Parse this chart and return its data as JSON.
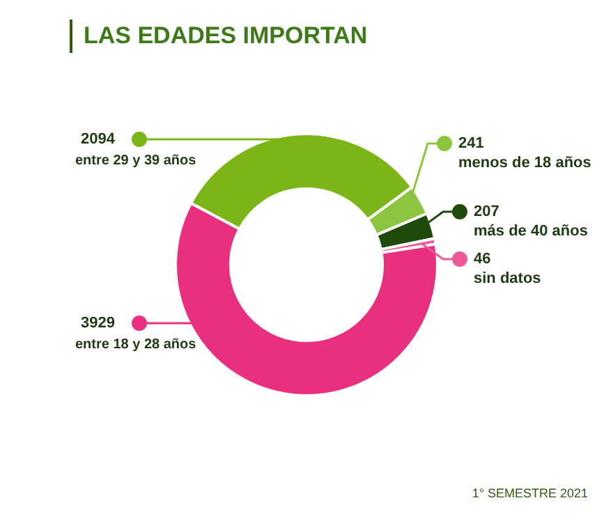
{
  "chart_data": {
    "type": "donut",
    "title": "LAS EDADES IMPORTAN",
    "categories": [
      "entre 29 y 39 años",
      "menos de 18 años",
      "más de 40 años",
      "sin datos",
      "entre 18 y 28 años"
    ],
    "values": [
      2094,
      241,
      207,
      46,
      3929
    ],
    "colors": [
      "#7cb518",
      "#8cc63f",
      "#1f4a0c",
      "#ec5a9a",
      "#e8307f"
    ],
    "data_labels": true,
    "legend": "right",
    "annotations": [
      "1° SEMESTRE 2021"
    ]
  }
}
